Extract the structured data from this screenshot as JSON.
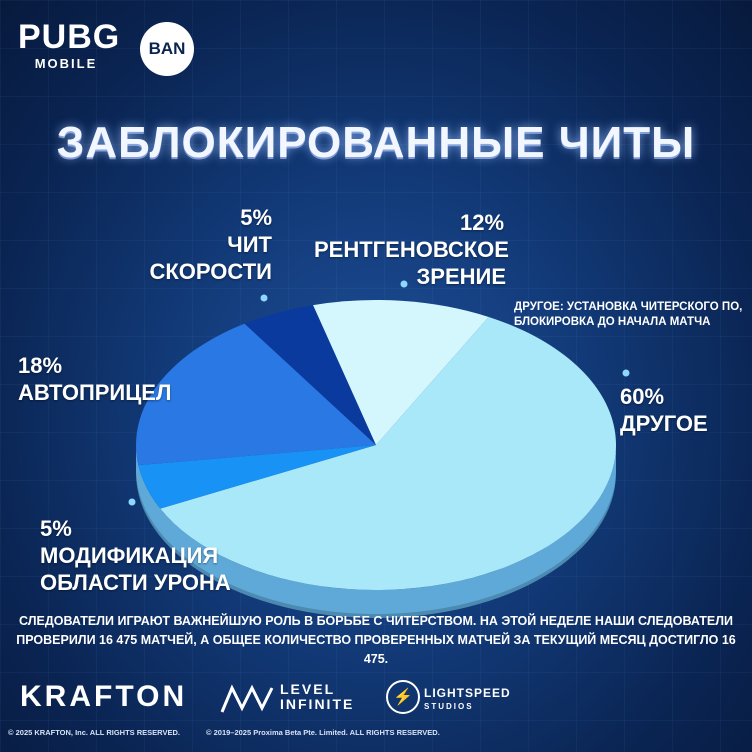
{
  "logos": {
    "pubg_top": "PUBG",
    "pubg_bottom": "MOBILE",
    "ban": "BAN"
  },
  "title": "ЗАБЛОКИРОВАННЫЕ ЧИТЫ",
  "colors": {
    "other": "#a8e8f8",
    "other_side": "#5fa9d9",
    "xray": "#d4f7fd",
    "speed": "#0b3a9e",
    "aimbot": "#2a78e4",
    "hitbox": "#1892f5"
  },
  "chart_data": {
    "type": "pie",
    "title": "ЗАБЛОКИРОВАННЫЕ ЧИТЫ",
    "slices": [
      {
        "key": "other",
        "pct_label": "60%",
        "value": 60,
        "label_lines": [
          "ДРУГОЕ"
        ]
      },
      {
        "key": "hitbox",
        "pct_label": "5%",
        "value": 5,
        "label_lines": [
          "МОДИФИКАЦИЯ",
          "ОБЛАСТИ УРОНА"
        ]
      },
      {
        "key": "aimbot",
        "pct_label": "18%",
        "value": 18,
        "label_lines": [
          "АВТОПРИЦЕЛ"
        ]
      },
      {
        "key": "speed",
        "pct_label": "5%",
        "value": 5,
        "label_lines": [
          "ЧИТ",
          "СКОРОСТИ"
        ]
      },
      {
        "key": "xray",
        "pct_label": "12%",
        "value": 12,
        "label_lines": [
          "РЕНТГЕНОВСКОЕ",
          "ЗРЕНИЕ"
        ]
      }
    ],
    "note": "ДРУГОЕ: УСТАНОВКА ЧИТЕРСКОГО ПО, БЛОКИРОВКА ДО НАЧАЛА МАТЧА"
  },
  "footer_text": "СЛЕДОВАТЕЛИ ИГРАЮТ ВАЖНЕЙШУЮ РОЛЬ В БОРЬБЕ С ЧИТЕРСТВОМ. НА ЭТОЙ НЕДЕЛЕ НАШИ СЛЕДОВАТЕЛИ ПРОВЕРИЛИ 16 475 МАТЧЕЙ, А ОБЩЕЕ КОЛИЧЕСТВО ПРОВЕРЕННЫХ МАТЧЕЙ ЗА ТЕКУЩИЙ МЕСЯЦ ДОСТИГЛО 16 475.",
  "brands": {
    "krafton": "KRAFTON",
    "level_top": "LEVEL",
    "level_bottom": "INFINITE",
    "lightspeed_top": "LIGHTSPEED",
    "lightspeed_bottom": "STUDIOS"
  },
  "copyright": {
    "krafton": "© 2025 KRAFTON, Inc. ALL RIGHTS RESERVED.",
    "proxima": "© 2019–2025 Proxima Beta Pte. Limited. ALL RIGHTS RESERVED."
  }
}
